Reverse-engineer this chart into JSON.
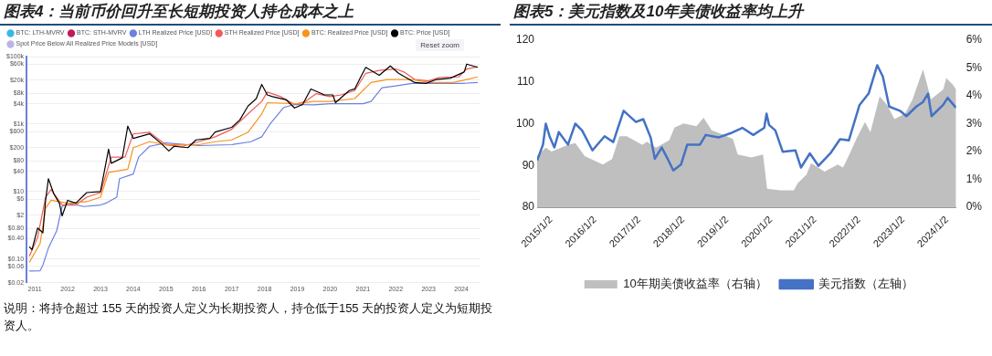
{
  "chart_data": [
    {
      "type": "line",
      "title": "图表4：当前币价回升至长短期投资人持仓成本之上",
      "log": "y",
      "grid": "y",
      "legend": "top left",
      "marker": "none",
      "annotations": [
        "Reset zoom",
        "说明：将持仓超过 155 天的投资人定义为长期投资人，持仓低于155 天的投资人定义为短期投资人。"
      ],
      "xlim": [
        "2010-10",
        "2024-08"
      ],
      "xticks": [
        "2011",
        "2012",
        "2013",
        "2014",
        "2015",
        "2016",
        "2017",
        "2018",
        "2019",
        "2020",
        "2021",
        "2022",
        "2023",
        "2024"
      ],
      "ylim": [
        0.02,
        100000
      ],
      "yticks": [
        {
          "value": 0.02,
          "label": "$0.02"
        },
        {
          "value": 0.06,
          "label": "$0.06"
        },
        {
          "value": 0.1,
          "label": "$0.10"
        },
        {
          "value": 0.4,
          "label": "$0.40"
        },
        {
          "value": 0.8,
          "label": "$0.80"
        },
        {
          "value": 2,
          "label": "$2"
        },
        {
          "value": 6,
          "label": "$6"
        },
        {
          "value": 10,
          "label": "$10"
        },
        {
          "value": 40,
          "label": "$40"
        },
        {
          "value": 80,
          "label": "$80"
        },
        {
          "value": 200,
          "label": "$200"
        },
        {
          "value": 600,
          "label": "$600"
        },
        {
          "value": 1000,
          "label": "$1k"
        },
        {
          "value": 4000,
          "label": "$4k"
        },
        {
          "value": 8000,
          "label": "$8k"
        },
        {
          "value": 20000,
          "label": "$20k"
        },
        {
          "value": 60000,
          "label": "$60k"
        },
        {
          "value": 100000,
          "label": "$100k"
        }
      ],
      "series": [
        {
          "name": "BTC: LTH-MVRV",
          "color": "#3cb6e6"
        },
        {
          "name": "BTC: STH-MVRV",
          "color": "#c2185b"
        },
        {
          "name": "LTH Realized Price [USD]",
          "color": "#6b7fe0",
          "x": [
            "2010-11",
            "2011-03",
            "2011-04",
            "2011-06",
            "2011-09",
            "2011-11",
            "2012-01",
            "2012-07",
            "2013-01",
            "2013-03",
            "2013-07",
            "2013-08",
            "2014-01",
            "2014-03",
            "2014-07",
            "2015-01",
            "2016-01",
            "2017-01",
            "2017-08",
            "2017-12",
            "2018-03",
            "2018-08",
            "2018-12",
            "2019-07",
            "2020-01",
            "2021-01",
            "2021-04",
            "2021-08",
            "2022-01",
            "2022-07",
            "2023-01",
            "2024-01",
            "2024-07"
          ],
          "values": [
            0.044,
            0.045,
            0.066,
            0.21,
            0.68,
            3.6,
            4.5,
            3.6,
            4,
            4.5,
            6.8,
            24,
            33,
            105,
            220,
            275,
            230,
            245,
            300,
            420,
            980,
            3100,
            3800,
            3700,
            4000,
            4000,
            4700,
            12000,
            13500,
            16000,
            16000,
            16000,
            17000
          ]
        },
        {
          "name": "STH Realized Price [USD]",
          "color": "#f05a5a",
          "x": [
            "2010-11",
            "2011-02",
            "2011-05",
            "2011-07",
            "2011-11",
            "2012-04",
            "2012-08",
            "2013-01",
            "2013-05",
            "2013-10",
            "2014-01",
            "2014-07",
            "2015-01",
            "2015-07",
            "2016-01",
            "2016-07",
            "2017-01",
            "2017-07",
            "2017-12",
            "2018-02",
            "2018-07",
            "2018-12",
            "2019-04",
            "2019-08",
            "2020-01",
            "2020-05",
            "2020-10",
            "2021-02",
            "2021-07",
            "2022-01",
            "2022-04",
            "2022-08",
            "2023-01",
            "2023-05",
            "2023-12",
            "2024-03",
            "2024-07"
          ],
          "values": [
            0.12,
            0.44,
            6.8,
            11.5,
            4,
            4,
            6.8,
            9.3,
            105,
            105,
            510,
            570,
            240,
            220,
            300,
            420,
            700,
            2000,
            4700,
            8900,
            6500,
            3800,
            4700,
            8000,
            6500,
            7300,
            9800,
            32000,
            39000,
            43000,
            35000,
            21000,
            19000,
            24000,
            25000,
            43000,
            50000
          ]
        },
        {
          "name": "BTC: Realized Price [USD]",
          "color": "#f7931a",
          "x": [
            "2010-11",
            "2011-03",
            "2011-05",
            "2011-07",
            "2012-01",
            "2012-08",
            "2013-01",
            "2013-04",
            "2013-11",
            "2014-01",
            "2014-07",
            "2015-01",
            "2016-01",
            "2016-07",
            "2017-01",
            "2017-07",
            "2017-12",
            "2018-02",
            "2019-01",
            "2019-07",
            "2020-01",
            "2020-10",
            "2021-04",
            "2021-10",
            "2022-07",
            "2023-01",
            "2023-10",
            "2024-03",
            "2024-07"
          ],
          "values": [
            0.08,
            0.29,
            3.2,
            5.5,
            4.5,
            5,
            6.8,
            37,
            46,
            200,
            300,
            245,
            245,
            300,
            340,
            570,
            2000,
            4300,
            4000,
            4700,
            4700,
            5700,
            17000,
            21000,
            21000,
            17000,
            17000,
            21000,
            25000
          ]
        },
        {
          "name": "BTC: Price [USD]",
          "color": "#000000",
          "x": [
            "2010-11",
            "2010-12",
            "2011-02",
            "2011-04",
            "2011-05",
            "2011-06",
            "2011-08",
            "2011-10",
            "2011-11",
            "2012-01",
            "2012-04",
            "2012-08",
            "2013-01",
            "2013-04",
            "2013-05",
            "2013-09",
            "2013-11",
            "2014-01",
            "2014-07",
            "2014-11",
            "2015-02",
            "2015-04",
            "2015-09",
            "2015-12",
            "2016-05",
            "2016-07",
            "2017-01",
            "2017-04",
            "2017-07",
            "2017-10",
            "2017-12",
            "2018-02",
            "2018-04",
            "2018-09",
            "2018-12",
            "2019-03",
            "2019-06",
            "2019-11",
            "2020-02",
            "2020-03",
            "2020-08",
            "2020-10",
            "2020-12",
            "2021-02",
            "2021-07",
            "2021-11",
            "2022-02",
            "2022-08",
            "2022-12",
            "2023-04",
            "2023-09",
            "2024-02",
            "2024-03",
            "2024-07"
          ],
          "values": [
            0.23,
            0.19,
            0.83,
            0.6,
            5.5,
            24,
            8.5,
            4.5,
            1.9,
            5.5,
            4.5,
            9.3,
            10,
            180,
            69,
            100,
            870,
            375,
            515,
            275,
            160,
            220,
            200,
            340,
            375,
            580,
            800,
            1330,
            3400,
            5700,
            15000,
            7300,
            6500,
            5200,
            3000,
            3800,
            11000,
            7300,
            7300,
            4300,
            9800,
            11000,
            23000,
            48000,
            28000,
            53000,
            32000,
            17000,
            16000,
            21000,
            23000,
            35000,
            60000,
            48000
          ]
        },
        {
          "name": "Spot Price Below All Realized Price Models [USD]",
          "color": "#b9b4e8"
        }
      ]
    },
    {
      "type": "line",
      "title": "图表5：美元指数及10年美债收益率均上升",
      "grid": false,
      "legend": "bottom",
      "marker": "none",
      "xlim": [
        "2015-01-02",
        "2024-07-10"
      ],
      "xticks": [
        {
          "value": "2015-01-02",
          "label": "2015/1/2"
        },
        {
          "value": "2016-01-02",
          "label": "2016/1/2"
        },
        {
          "value": "2017-01-02",
          "label": "2017/1/2"
        },
        {
          "value": "2018-01-02",
          "label": "2018/1/2"
        },
        {
          "value": "2019-01-02",
          "label": "2019/1/2"
        },
        {
          "value": "2020-01-02",
          "label": "2020/1/2"
        },
        {
          "value": "2021-01-02",
          "label": "2021/1/2"
        },
        {
          "value": "2022-01-02",
          "label": "2022/1/2"
        },
        {
          "value": "2023-01-02",
          "label": "2023/1/2"
        },
        {
          "value": "2024-01-02",
          "label": "2024/1/2"
        }
      ],
      "ylim": [
        80,
        120
      ],
      "yticks": [
        80,
        90,
        100,
        110,
        120
      ],
      "y2lim": [
        0,
        6
      ],
      "y2ticks": [
        {
          "value": 0,
          "label": "0%"
        },
        {
          "value": 1,
          "label": "1%"
        },
        {
          "value": 2,
          "label": "2%"
        },
        {
          "value": 3,
          "label": "3%"
        },
        {
          "value": 4,
          "label": "4%"
        },
        {
          "value": 5,
          "label": "5%"
        },
        {
          "value": 6,
          "label": "6%"
        }
      ],
      "series": [
        {
          "name": "10年期美债收益率（右轴）",
          "type": "area",
          "axis": "y2",
          "color": "#bfbfbf",
          "x": [
            "2015-01-02",
            "2015-03-15",
            "2015-05-01",
            "2015-09-15",
            "2015-11-15",
            "2016-02-01",
            "2016-07-01",
            "2016-09-15",
            "2016-11-15",
            "2017-01-15",
            "2017-05-25",
            "2017-07-01",
            "2017-09-15",
            "2018-01-02",
            "2018-02-15",
            "2018-05-01",
            "2018-08-15",
            "2018-10-15",
            "2018-12-20",
            "2019-03-01",
            "2019-06-15",
            "2019-07-25",
            "2019-11-15",
            "2020-02-20",
            "2020-03-25",
            "2020-07-15",
            "2020-11-01",
            "2020-12-05",
            "2021-02-15",
            "2021-03-25",
            "2021-07-15",
            "2021-11-01",
            "2021-12-15",
            "2022-01-30",
            "2022-04-15",
            "2022-06-15",
            "2022-07-30",
            "2022-10-15",
            "2022-12-15",
            "2023-02-15",
            "2023-05-15",
            "2023-07-15",
            "2023-10-10",
            "2023-12-15",
            "2024-03-25",
            "2024-04-20",
            "2024-06-15",
            "2024-07-10"
          ],
          "values": [
            1.84,
            2.14,
            2.0,
            2.24,
            2.3,
            1.84,
            1.53,
            1.73,
            2.55,
            2.55,
            2.24,
            2.35,
            2.14,
            2.4,
            2.86,
            3.01,
            2.91,
            3.21,
            2.76,
            2.65,
            2.45,
            1.89,
            1.79,
            1.89,
            0.66,
            0.61,
            0.61,
            0.87,
            1.17,
            1.58,
            1.28,
            1.53,
            1.43,
            1.84,
            2.55,
            3.06,
            2.7,
            3.98,
            3.67,
            3.16,
            3.37,
            3.88,
            4.95,
            3.88,
            4.23,
            4.64,
            4.39,
            4.23
          ]
        },
        {
          "name": "美元指数（左轴）",
          "type": "line",
          "axis": "y",
          "color": "#4472c4",
          "x": [
            "2015-01-02",
            "2015-02-20",
            "2015-03-15",
            "2015-04-15",
            "2015-05-25",
            "2015-07-01",
            "2015-09-15",
            "2015-11-15",
            "2016-01-10",
            "2016-04-05",
            "2016-07-15",
            "2016-09-25",
            "2016-12-20",
            "2017-04-01",
            "2017-06-01",
            "2017-08-01",
            "2017-09-05",
            "2017-11-01",
            "2017-12-15",
            "2018-02-05",
            "2018-04-10",
            "2018-06-01",
            "2018-09-15",
            "2018-11-01",
            "2019-02-15",
            "2019-05-25",
            "2019-09-01",
            "2019-12-01",
            "2020-03-01",
            "2020-03-20",
            "2020-04-10",
            "2020-06-01",
            "2020-08-01",
            "2020-11-15",
            "2020-12-31",
            "2021-03-15",
            "2021-05-25",
            "2021-09-01",
            "2021-11-20",
            "2022-02-01",
            "2022-05-01",
            "2022-07-15",
            "2022-09-25",
            "2022-11-10",
            "2023-01-02",
            "2023-04-01",
            "2023-05-25",
            "2023-08-15",
            "2023-10-10",
            "2023-11-20",
            "2023-12-20",
            "2024-03-25",
            "2024-05-01",
            "2024-07-10"
          ],
          "values": [
            91.2,
            95,
            100,
            97,
            94.3,
            98,
            95,
            100,
            98.4,
            93.6,
            97,
            95.6,
            103.1,
            100.4,
            101.1,
            96.7,
            91.6,
            94.3,
            91.9,
            88.8,
            90.2,
            95,
            95,
            97.3,
            96.7,
            97.7,
            99,
            97.3,
            99,
            102.4,
            99.7,
            98.4,
            93.3,
            93.6,
            89.5,
            92.9,
            89.9,
            92.9,
            96.3,
            96,
            104.5,
            107.2,
            114,
            111.3,
            104.1,
            103.1,
            101.8,
            104.1,
            105.2,
            107.2,
            101.8,
            104.5,
            106.2,
            103.8
          ]
        }
      ]
    }
  ]
}
